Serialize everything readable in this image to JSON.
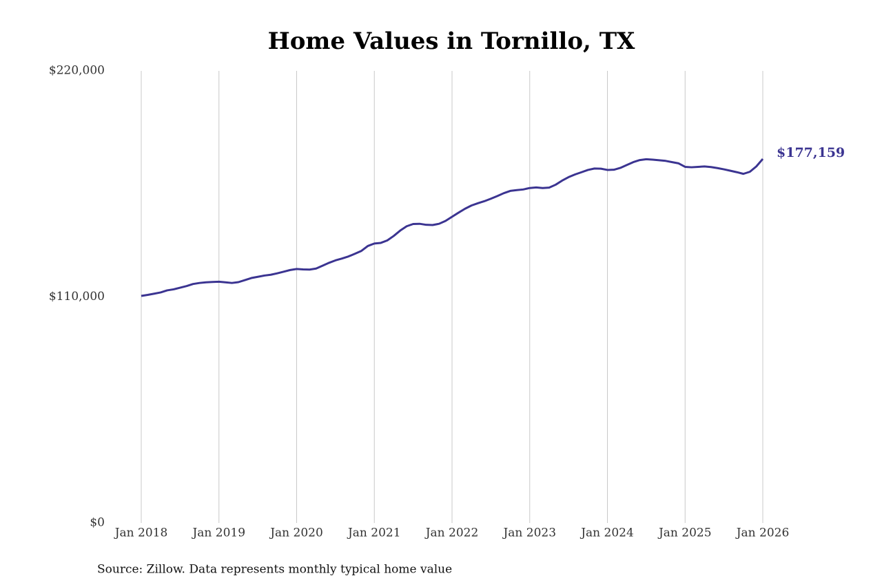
{
  "chart_data": {
    "type": "line",
    "title": "Home Values in Tornillo, TX",
    "source": "Source: Zillow. Data represents monthly typical home value",
    "x": [
      "2018-01",
      "2018-02",
      "2018-03",
      "2018-04",
      "2018-05",
      "2018-06",
      "2018-07",
      "2018-08",
      "2018-09",
      "2018-10",
      "2018-11",
      "2018-12",
      "2019-01",
      "2019-02",
      "2019-03",
      "2019-04",
      "2019-05",
      "2019-06",
      "2019-07",
      "2019-08",
      "2019-09",
      "2019-10",
      "2019-11",
      "2019-12",
      "2020-01",
      "2020-02",
      "2020-03",
      "2020-04",
      "2020-05",
      "2020-06",
      "2020-07",
      "2020-08",
      "2020-09",
      "2020-10",
      "2020-11",
      "2020-12",
      "2021-01",
      "2021-02",
      "2021-03",
      "2021-04",
      "2021-05",
      "2021-06",
      "2021-07",
      "2021-08",
      "2021-09",
      "2021-10",
      "2021-11",
      "2021-12",
      "2022-01",
      "2022-02",
      "2022-03",
      "2022-04",
      "2022-05",
      "2022-06",
      "2022-07",
      "2022-08",
      "2022-09",
      "2022-10",
      "2022-11",
      "2022-12",
      "2023-01",
      "2023-02",
      "2023-03",
      "2023-04",
      "2023-05",
      "2023-06",
      "2023-07",
      "2023-08",
      "2023-09",
      "2023-10",
      "2023-11",
      "2023-12",
      "2024-01",
      "2024-02",
      "2024-03",
      "2024-04",
      "2024-05",
      "2024-06",
      "2024-07",
      "2024-08",
      "2024-09",
      "2024-10",
      "2024-11",
      "2024-12",
      "2025-01",
      "2025-02",
      "2025-03",
      "2025-04",
      "2025-05",
      "2025-06",
      "2025-07",
      "2025-08",
      "2025-09",
      "2025-10",
      "2025-11",
      "2025-12",
      "2026-01"
    ],
    "series": [
      {
        "name": "Typical home value",
        "color": "#3b3491",
        "values": [
          110500,
          111000,
          111600,
          112200,
          113200,
          113700,
          114500,
          115300,
          116300,
          116800,
          117100,
          117300,
          117400,
          117100,
          116800,
          117200,
          118200,
          119200,
          119800,
          120400,
          120800,
          121500,
          122300,
          123100,
          123600,
          123400,
          123300,
          123800,
          125200,
          126600,
          127800,
          128700,
          129700,
          131000,
          132400,
          134800,
          136000,
          136300,
          137500,
          139700,
          142300,
          144400,
          145500,
          145600,
          145100,
          145000,
          145600,
          147000,
          149000,
          151000,
          152900,
          154500,
          155600,
          156600,
          157800,
          159100,
          160500,
          161600,
          162000,
          162300,
          163000,
          163300,
          163000,
          163200,
          164600,
          166600,
          168300,
          169600,
          170700,
          171800,
          172500,
          172400,
          171800,
          171900,
          172800,
          174200,
          175600,
          176600,
          177000,
          176800,
          176500,
          176200,
          175600,
          175000,
          173300,
          173100,
          173300,
          173500,
          173200,
          172700,
          172100,
          171400,
          170700,
          169900,
          170900,
          173500,
          177159
        ]
      }
    ],
    "annotation": "$177,159",
    "xlim": [
      "2018-01",
      "2026-01"
    ],
    "xticks": [
      {
        "value": "2018-01",
        "label": "Jan 2018"
      },
      {
        "value": "2019-01",
        "label": "Jan 2019"
      },
      {
        "value": "2020-01",
        "label": "Jan 2020"
      },
      {
        "value": "2021-01",
        "label": "Jan 2021"
      },
      {
        "value": "2022-01",
        "label": "Jan 2022"
      },
      {
        "value": "2023-01",
        "label": "Jan 2023"
      },
      {
        "value": "2024-01",
        "label": "Jan 2024"
      },
      {
        "value": "2025-01",
        "label": "Jan 2025"
      },
      {
        "value": "2026-01",
        "label": "Jan 2026"
      }
    ],
    "ylim": [
      0,
      220000
    ],
    "yticks": [
      {
        "value": 0,
        "label": "$0"
      },
      {
        "value": 110000,
        "label": "$110,000"
      },
      {
        "value": 220000,
        "label": "$220,000"
      }
    ],
    "grid": "x"
  }
}
